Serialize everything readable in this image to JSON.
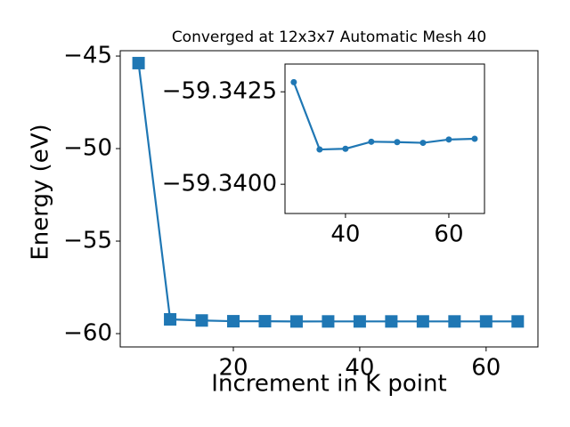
{
  "chart_data": [
    {
      "type": "line",
      "title": "Converged at 12x3x7 Automatic Mesh 40",
      "x_label": "Increment in K point",
      "y_label": "Energy (eV)",
      "x": [
        5,
        10,
        15,
        20,
        25,
        30,
        35,
        40,
        45,
        50,
        55,
        60,
        65
      ],
      "series": [
        {
          "color": "#1f77b4",
          "marker": "square",
          "values": [
            -45.38,
            -59.23,
            -59.29,
            -59.33,
            -59.33,
            -59.3428,
            -59.3409,
            -59.341,
            -59.3412,
            -59.3411,
            -59.3411,
            -59.3412,
            -59.3412
          ]
        }
      ],
      "xlim": [
        2.1,
        68.2
      ],
      "ylim": [
        -60.72,
        -44.71
      ],
      "xticks": [
        20,
        40,
        60
      ],
      "yticks": [
        {
          "value": -60,
          "label": "−60"
        },
        {
          "value": -55,
          "label": "−55"
        },
        {
          "value": -50,
          "label": "−50"
        },
        {
          "value": -45,
          "label": "−45"
        }
      ]
    },
    {
      "type": "line",
      "x": [
        30,
        35,
        40,
        45,
        50,
        55,
        60,
        65
      ],
      "series": [
        {
          "color": "#1f77b4",
          "marker": "circle",
          "values": [
            -59.34276,
            -59.34094,
            -59.34096,
            -59.34115,
            -59.34114,
            -59.34112,
            -59.34121,
            -59.34123
          ]
        }
      ],
      "xlim": [
        28.3,
        66.9
      ],
      "ylim": [
        -59.33921,
        -59.34325
      ],
      "xticks": [
        40,
        60
      ],
      "yticks": [
        {
          "value": -59.3425,
          "label": "−59.3425"
        },
        {
          "value": -59.34,
          "label": "−59.3400"
        }
      ]
    }
  ]
}
